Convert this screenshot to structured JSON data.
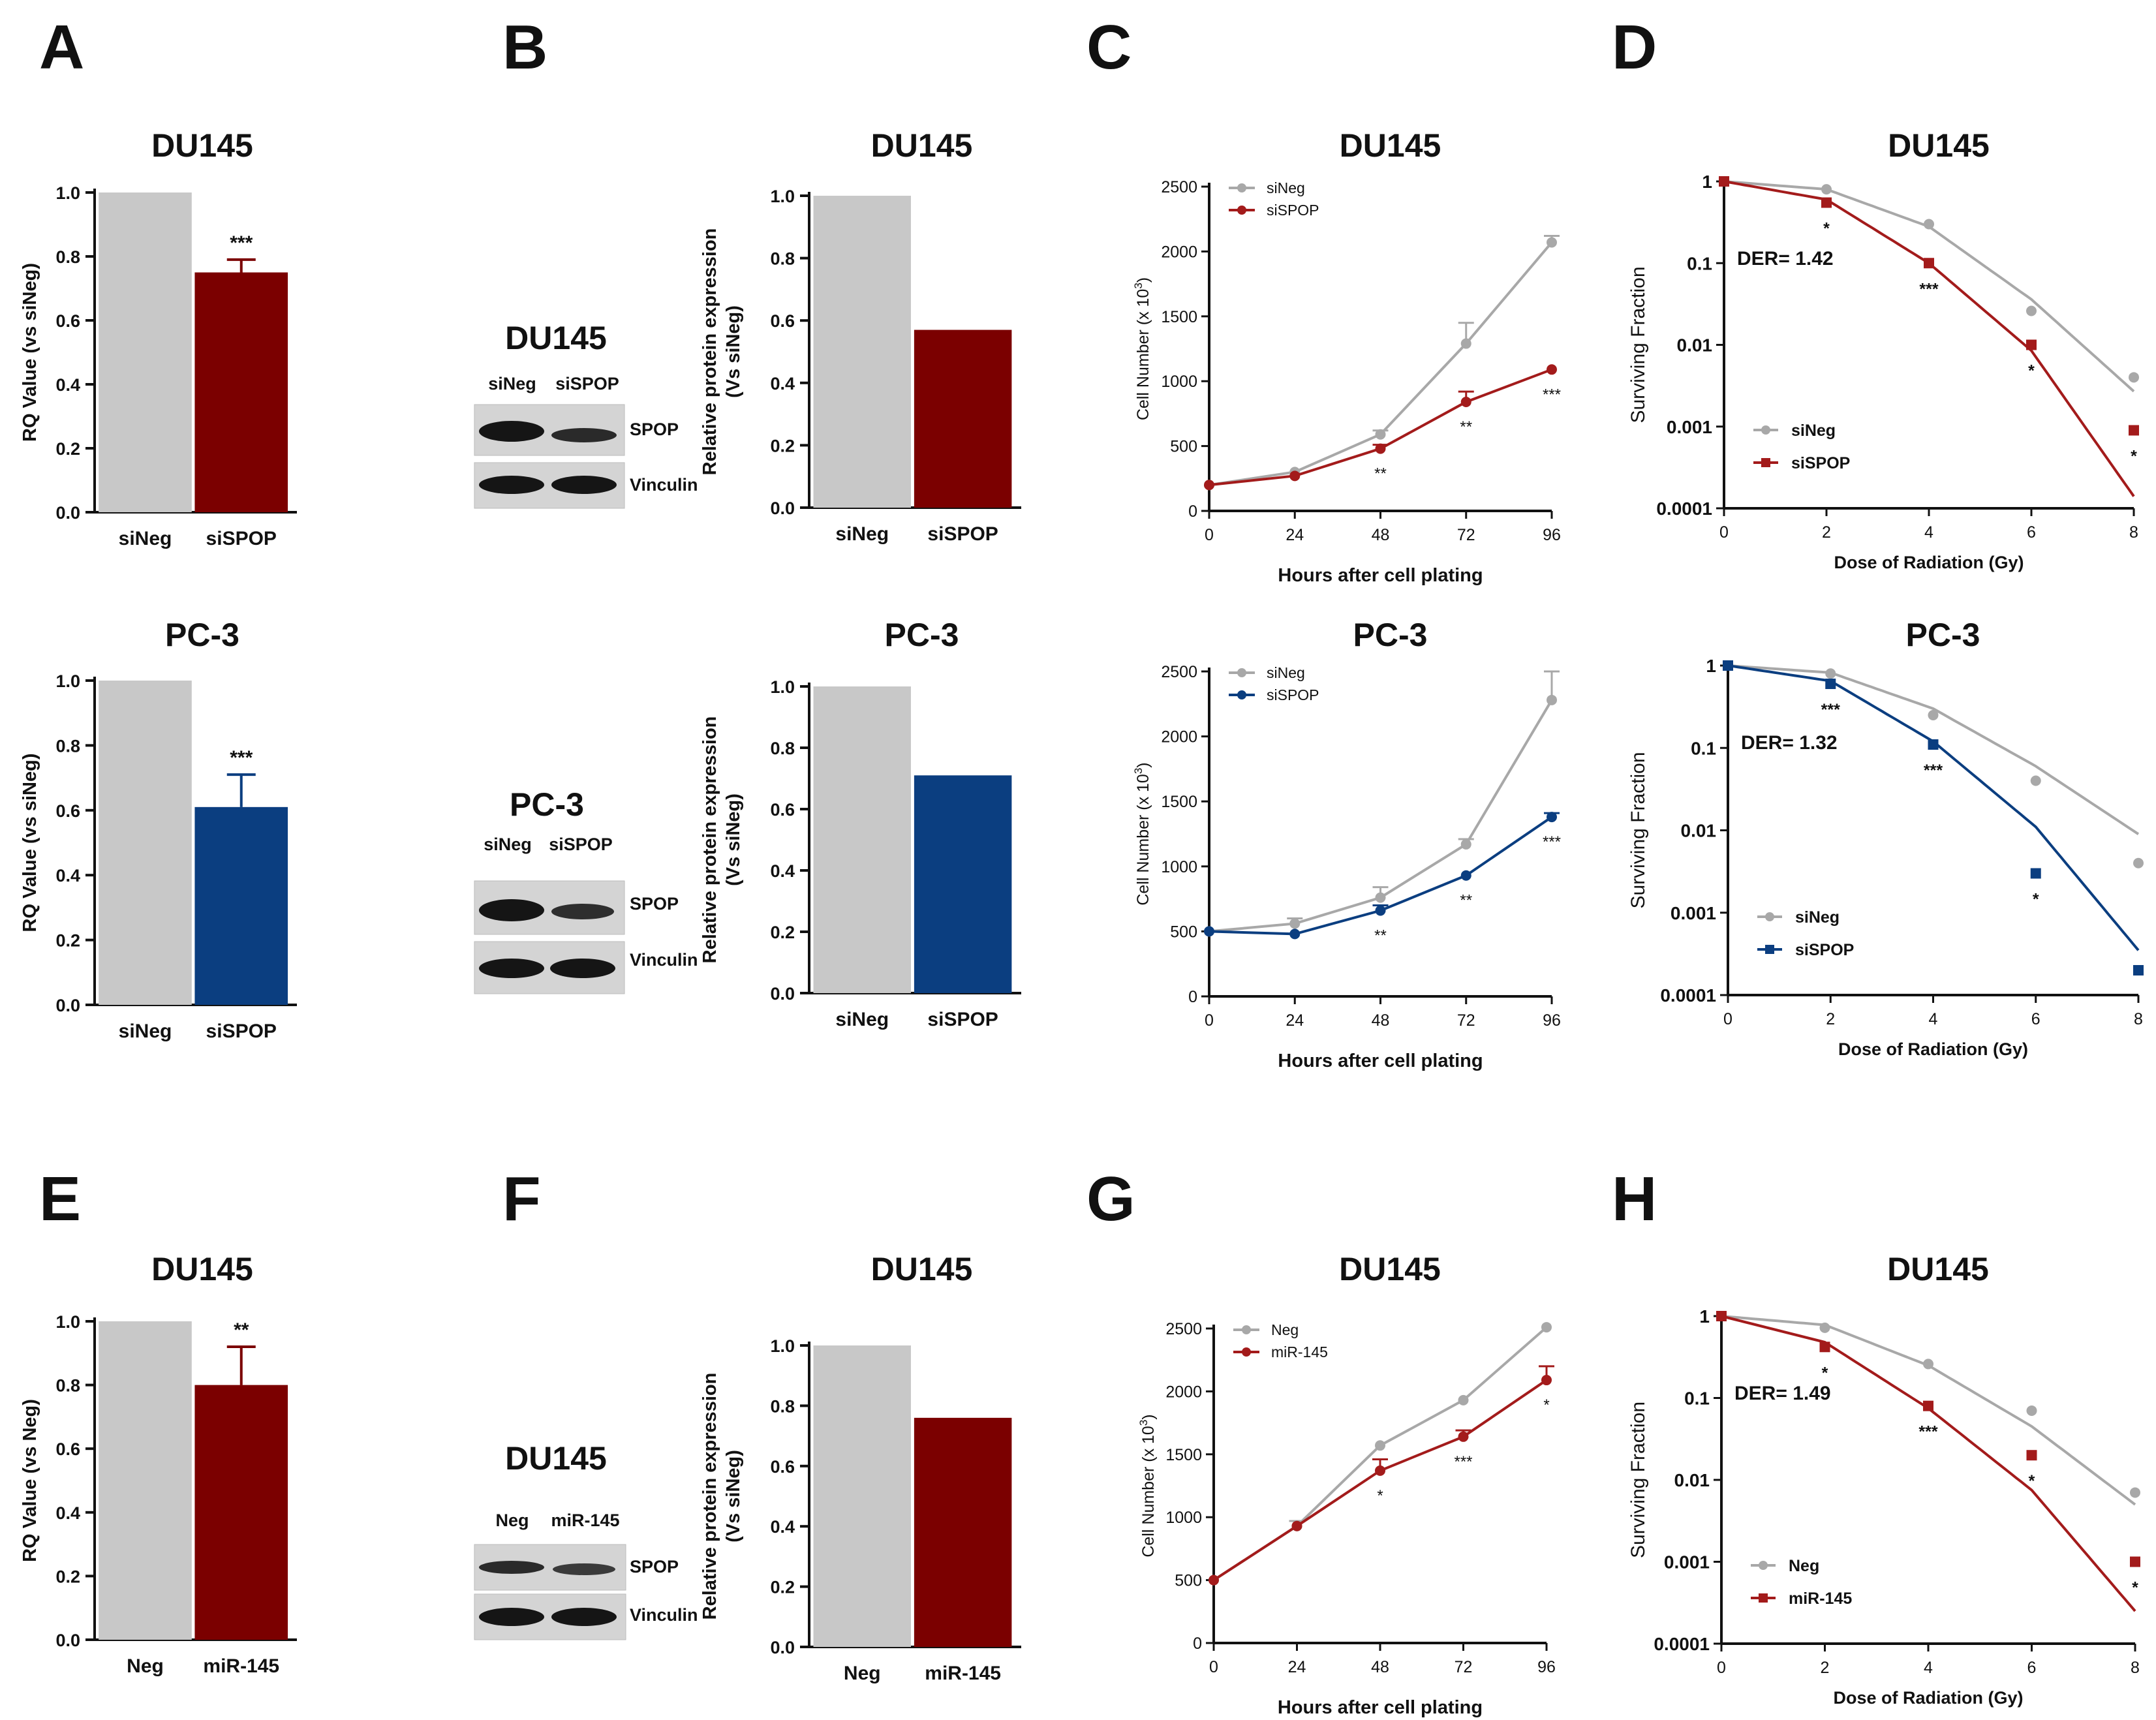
{
  "colors": {
    "gray": "#c8c8c8",
    "gray_line": "#a8a8a8",
    "red": "#7b0000",
    "red_line": "#a31b1b",
    "blue": "#0b3e80",
    "axis": "#111111"
  },
  "panel_labels": [
    "A",
    "B",
    "C",
    "D",
    "E",
    "F",
    "G",
    "H"
  ],
  "western_blots": [
    {
      "title": "DU145",
      "lanes": [
        "siNeg",
        "siSPOP"
      ],
      "bands": [
        "SPOP",
        "Vinculin"
      ]
    },
    {
      "title": "PC-3",
      "lanes": [
        "siNeg",
        "siSPOP"
      ],
      "bands": [
        "SPOP",
        "Vinculin"
      ]
    },
    {
      "title": "DU145",
      "lanes": [
        "Neg",
        "miR-145"
      ],
      "bands": [
        "SPOP",
        "Vinculin"
      ]
    }
  ],
  "chart_data": [
    {
      "id": "A1",
      "type": "bar",
      "title": "DU145",
      "ylabel": "RQ Value (vs siNeg)",
      "categories": [
        "siNeg",
        "siSPOP"
      ],
      "values": [
        1.0,
        0.75
      ],
      "errors": [
        0,
        0.04
      ],
      "colors": [
        "gray",
        "red"
      ],
      "sig": "***",
      "ylim": [
        0,
        1.0
      ],
      "yticks": [
        "0.0",
        "0.2",
        "0.4",
        "0.6",
        "0.8",
        "1.0"
      ]
    },
    {
      "id": "A2",
      "type": "bar",
      "title": "PC-3",
      "ylabel": "RQ Value (vs siNeg)",
      "categories": [
        "siNeg",
        "siSPOP"
      ],
      "values": [
        1.0,
        0.61
      ],
      "errors": [
        0,
        0.1
      ],
      "colors": [
        "gray",
        "blue"
      ],
      "sig": "***",
      "ylim": [
        0,
        1.0
      ],
      "yticks": [
        "0.0",
        "0.2",
        "0.4",
        "0.6",
        "0.8",
        "1.0"
      ]
    },
    {
      "id": "E",
      "type": "bar",
      "title": "DU145",
      "ylabel": "RQ Value (vs Neg)",
      "categories": [
        "Neg",
        "miR-145"
      ],
      "values": [
        1.0,
        0.8
      ],
      "errors": [
        0,
        0.12
      ],
      "colors": [
        "gray",
        "red"
      ],
      "sig": "**",
      "ylim": [
        0,
        1.0
      ],
      "yticks": [
        "0.0",
        "0.2",
        "0.4",
        "0.6",
        "0.8",
        "1.0"
      ]
    },
    {
      "id": "B1",
      "type": "bar",
      "title": "DU145",
      "ylabel": "Relative protein expression (Vs siNeg)",
      "categories": [
        "siNeg",
        "siSPOP"
      ],
      "values": [
        1.0,
        0.57
      ],
      "errors": [
        0,
        0
      ],
      "colors": [
        "gray",
        "red"
      ],
      "sig": "",
      "ylim": [
        0,
        1.0
      ],
      "yticks": [
        "0.0",
        "0.2",
        "0.4",
        "0.6",
        "0.8",
        "1.0"
      ]
    },
    {
      "id": "B2",
      "type": "bar",
      "title": "PC-3",
      "ylabel": "Relative protein expression (Vs siNeg)",
      "categories": [
        "siNeg",
        "siSPOP"
      ],
      "values": [
        1.0,
        0.71
      ],
      "errors": [
        0,
        0
      ],
      "colors": [
        "gray",
        "blue"
      ],
      "sig": "",
      "ylim": [
        0,
        1.0
      ],
      "yticks": [
        "0.0",
        "0.2",
        "0.4",
        "0.6",
        "0.8",
        "1.0"
      ]
    },
    {
      "id": "F",
      "type": "bar",
      "title": "DU145",
      "ylabel": "Relative protein expression (Vs siNeg)",
      "categories": [
        "Neg",
        "miR-145"
      ],
      "values": [
        1.0,
        0.76
      ],
      "errors": [
        0,
        0
      ],
      "colors": [
        "gray",
        "red"
      ],
      "sig": "",
      "ylim": [
        0,
        1.0
      ],
      "yticks": [
        "0.0",
        "0.2",
        "0.4",
        "0.6",
        "0.8",
        "1.0"
      ]
    },
    {
      "id": "C1",
      "type": "line",
      "title": "DU145",
      "xlabel": "Hours after cell plating",
      "ylabel": "Cell Number (x 10",
      "ylabel_sup": "3",
      "ylabel_end": ")",
      "x": [
        0,
        24,
        48,
        72,
        96
      ],
      "xticks": [
        "0",
        "24",
        "48",
        "72",
        "96"
      ],
      "ylim": [
        0,
        2500
      ],
      "yticks": [
        "0",
        "500",
        "1000",
        "1500",
        "2000",
        "2500"
      ],
      "series": [
        {
          "name": "siNeg",
          "color": "gray",
          "values": [
            200,
            300,
            590,
            1290,
            2070
          ],
          "errors": [
            0,
            0,
            30,
            160,
            50
          ]
        },
        {
          "name": "siSPOP",
          "color": "red",
          "values": [
            200,
            270,
            480,
            840,
            1090
          ],
          "errors": [
            0,
            0,
            30,
            80,
            0
          ]
        }
      ],
      "sig": [
        "",
        "",
        "**",
        "**",
        "***"
      ]
    },
    {
      "id": "C2",
      "type": "line",
      "title": "PC-3",
      "xlabel": "Hours after cell plating",
      "ylabel": "Cell Number (x 10",
      "ylabel_sup": "3",
      "ylabel_end": ")",
      "x": [
        0,
        24,
        48,
        72,
        96
      ],
      "xticks": [
        "0",
        "24",
        "48",
        "72",
        "96"
      ],
      "ylim": [
        0,
        2500
      ],
      "yticks": [
        "0",
        "500",
        "1000",
        "1500",
        "2000",
        "2500"
      ],
      "series": [
        {
          "name": "siNeg",
          "color": "gray",
          "values": [
            500,
            560,
            760,
            1170,
            2280
          ],
          "errors": [
            0,
            40,
            80,
            40,
            220
          ]
        },
        {
          "name": "siSPOP",
          "color": "blue",
          "values": [
            500,
            480,
            660,
            930,
            1380
          ],
          "errors": [
            0,
            0,
            40,
            0,
            30
          ]
        }
      ],
      "sig": [
        "",
        "",
        "**",
        "**",
        "***"
      ]
    },
    {
      "id": "G",
      "type": "line",
      "title": "DU145",
      "xlabel": "Hours after cell plating",
      "ylabel": "Cell Number (x 10",
      "ylabel_sup": "3",
      "ylabel_end": ")",
      "x": [
        0,
        24,
        48,
        72,
        96
      ],
      "xticks": [
        "0",
        "24",
        "48",
        "72",
        "96"
      ],
      "ylim": [
        0,
        2500
      ],
      "yticks": [
        "0",
        "500",
        "1000",
        "1500",
        "2000",
        "2500"
      ],
      "series": [
        {
          "name": "Neg",
          "color": "gray",
          "values": [
            500,
            930,
            1570,
            1930,
            2510
          ],
          "errors": [
            0,
            40,
            0,
            0,
            0
          ]
        },
        {
          "name": "miR-145",
          "color": "red",
          "values": [
            500,
            930,
            1370,
            1640,
            2090
          ],
          "errors": [
            0,
            0,
            90,
            50,
            110
          ]
        }
      ],
      "sig": [
        "",
        "",
        "*",
        "***",
        "*"
      ]
    },
    {
      "id": "D1",
      "type": "scatter",
      "scale": "log",
      "title": "DU145",
      "xlabel": "Dose of Radiation (Gy)",
      "ylabel": "Surviving Fraction",
      "der": "DER= 1.42",
      "x": [
        0,
        2,
        4,
        6,
        8
      ],
      "xticks": [
        "0",
        "2",
        "4",
        "6",
        "8"
      ],
      "ylim": [
        0.0001,
        1
      ],
      "yticks": [
        "1",
        "0.1",
        "0.01",
        "0.001",
        "0.0001"
      ],
      "series": [
        {
          "name": "siNeg",
          "color": "gray",
          "values": [
            1,
            0.8,
            0.3,
            0.026,
            0.004
          ],
          "fit": [
            1,
            0.8,
            0.28,
            0.036,
            0.0027
          ]
        },
        {
          "name": "siSPOP",
          "color": "red",
          "values": [
            1,
            0.55,
            0.1,
            0.01,
            0.0009
          ],
          "fit": [
            1,
            0.6,
            0.1,
            0.0085,
            0.00014
          ]
        }
      ],
      "sig": [
        "",
        "*",
        "***",
        "*",
        "*"
      ]
    },
    {
      "id": "D2",
      "type": "scatter",
      "scale": "log",
      "title": "PC-3",
      "xlabel": "Dose of Radiation (Gy)",
      "ylabel": "Surviving Fraction",
      "der": "DER= 1.32",
      "x": [
        0,
        2,
        4,
        6,
        8
      ],
      "xticks": [
        "0",
        "2",
        "4",
        "6",
        "8"
      ],
      "ylim": [
        0.0001,
        1
      ],
      "yticks": [
        "1",
        "0.1",
        "0.01",
        "0.001",
        "0.0001"
      ],
      "series": [
        {
          "name": "siNeg",
          "color": "gray",
          "values": [
            1,
            0.8,
            0.25,
            0.04,
            0.004
          ],
          "fit": [
            1,
            0.82,
            0.3,
            0.06,
            0.009
          ]
        },
        {
          "name": "siSPOP",
          "color": "blue",
          "values": [
            1,
            0.6,
            0.11,
            0.003,
            0.0002
          ],
          "fit": [
            1,
            0.65,
            0.12,
            0.011,
            0.00035
          ]
        }
      ],
      "sig": [
        "",
        "***",
        "***",
        "*",
        ""
      ]
    },
    {
      "id": "H",
      "type": "scatter",
      "scale": "log",
      "title": "DU145",
      "xlabel": "Dose of Radiation (Gy)",
      "ylabel": "Surviving Fraction",
      "der": "DER= 1.49",
      "x": [
        0,
        2,
        4,
        6,
        8
      ],
      "xticks": [
        "0",
        "2",
        "4",
        "6",
        "8"
      ],
      "ylim": [
        0.0001,
        1
      ],
      "yticks": [
        "1",
        "0.1",
        "0.01",
        "0.001",
        "0.0001"
      ],
      "series": [
        {
          "name": "Neg",
          "color": "gray",
          "values": [
            1,
            0.72,
            0.26,
            0.07,
            0.007
          ],
          "fit": [
            1,
            0.78,
            0.25,
            0.045,
            0.005
          ]
        },
        {
          "name": "miR-145",
          "color": "red",
          "values": [
            1,
            0.42,
            0.08,
            0.02,
            0.001
          ],
          "fit": [
            1,
            0.48,
            0.075,
            0.0075,
            0.00025
          ]
        }
      ],
      "sig": [
        "",
        "*",
        "***",
        "*",
        "*"
      ]
    }
  ]
}
